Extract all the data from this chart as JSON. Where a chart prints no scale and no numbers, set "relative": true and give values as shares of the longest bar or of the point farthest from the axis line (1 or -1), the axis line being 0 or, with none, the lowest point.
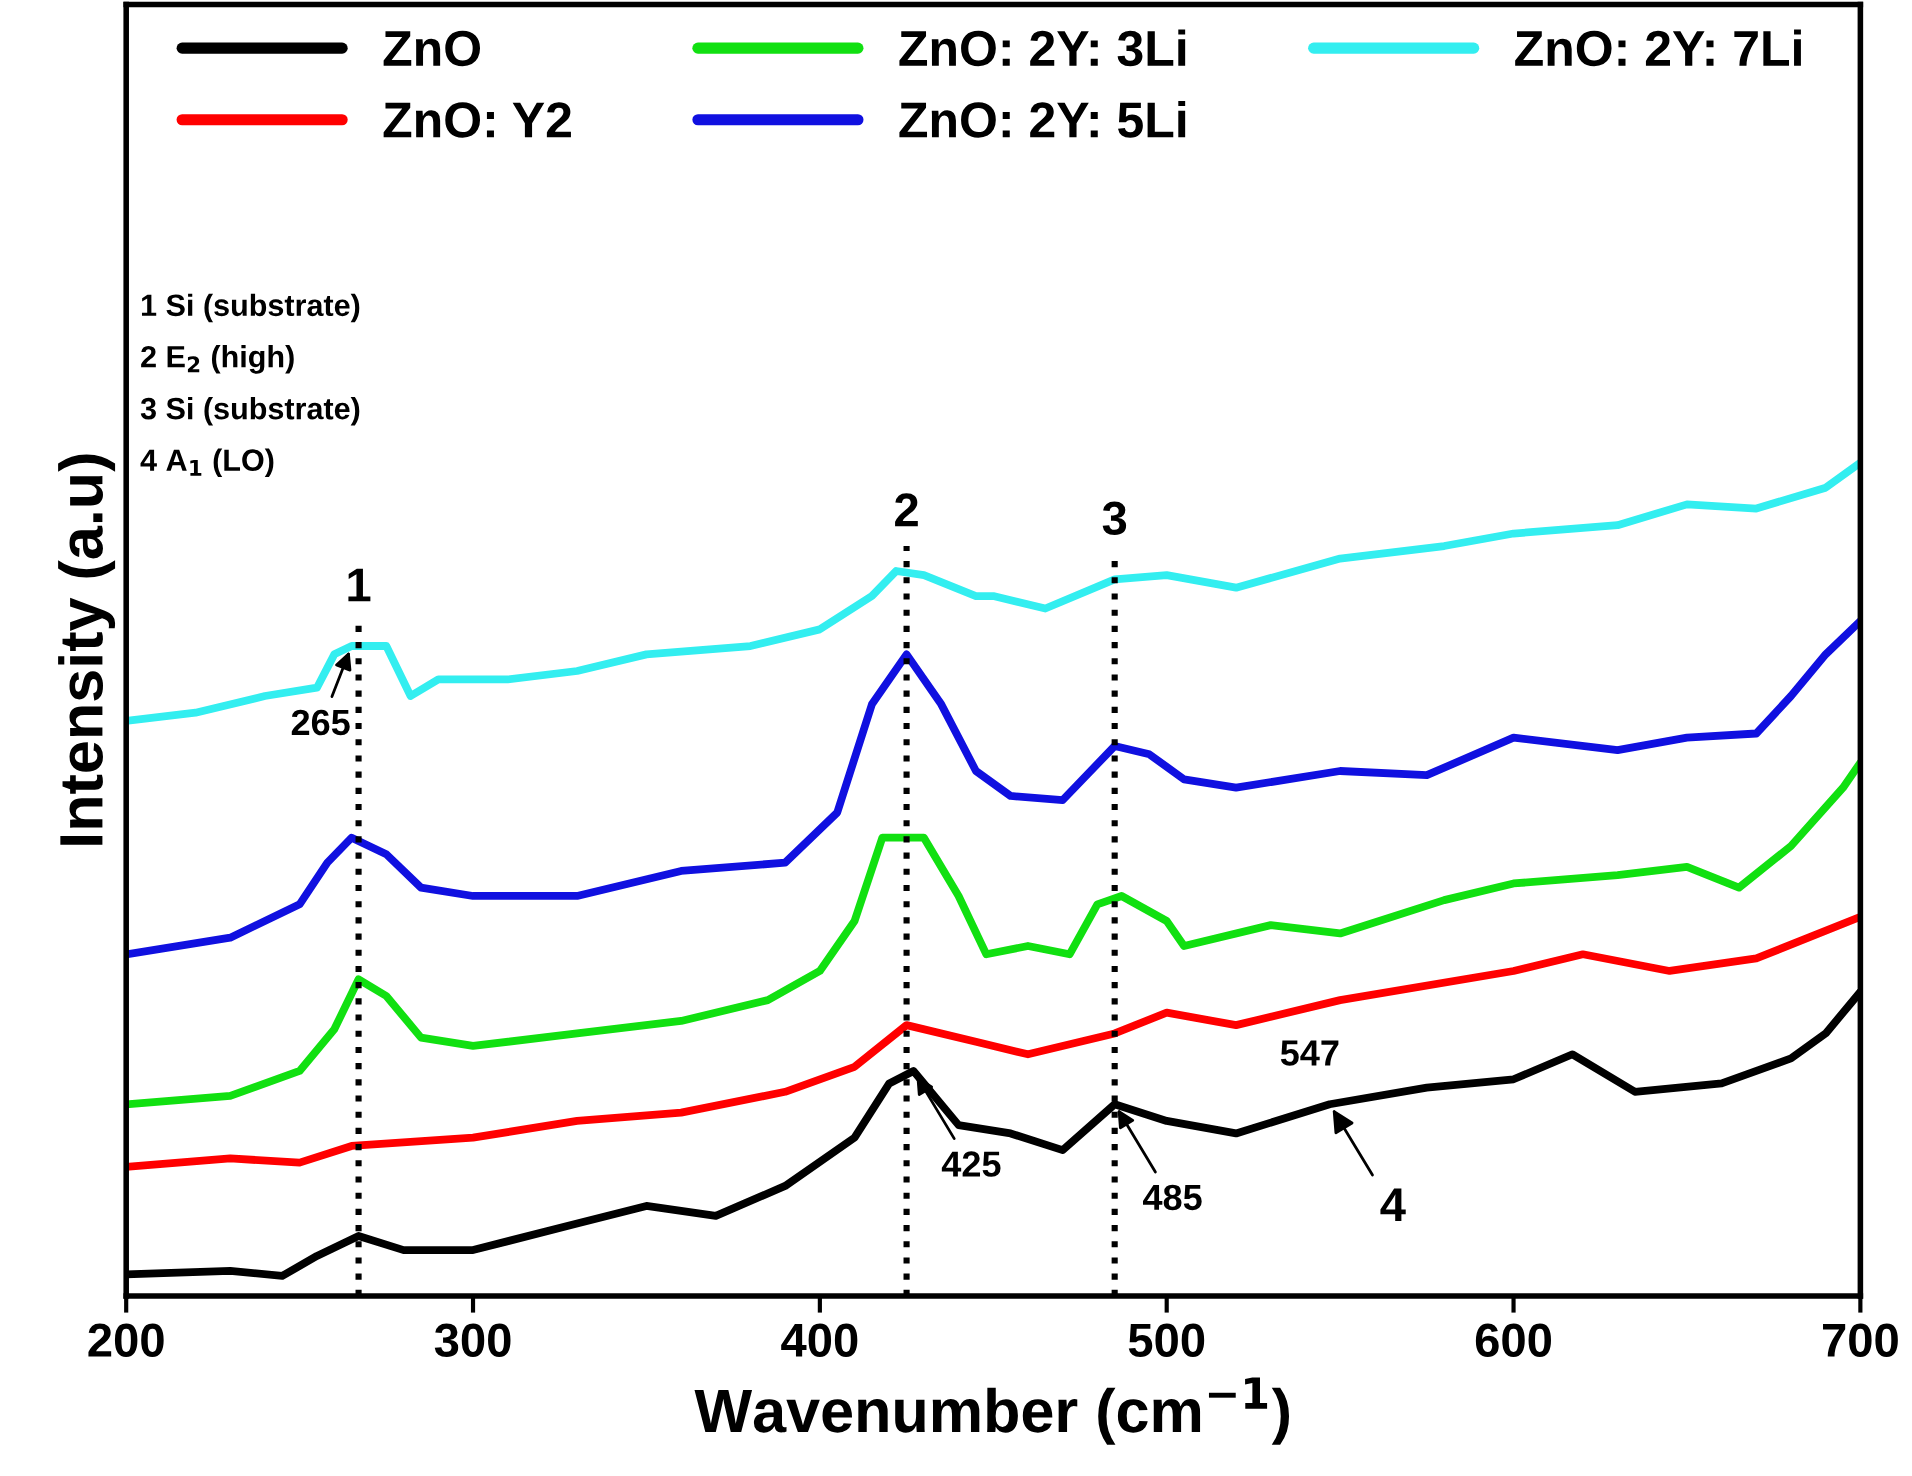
{
  "chart_data": {
    "type": "line",
    "relative": true,
    "xlabel": "Wavenumber (cm$^{−1}$)",
    "ylabel": "Intensity (a.u)",
    "xlim": [
      200,
      700
    ],
    "xticks": [
      200,
      300,
      400,
      500,
      600,
      700
    ],
    "tick_labels": "x",
    "legend": "top",
    "grid": false,
    "line_style": "solid",
    "marker": "none",
    "series": [
      {
        "name": "ZnO",
        "color": "#000000",
        "x": [
          200,
          230,
          245,
          255,
          267,
          280,
          300,
          330,
          350,
          370,
          390,
          410,
          420,
          427,
          440,
          455,
          470,
          485,
          500,
          520,
          547,
          575,
          600,
          617,
          635,
          660,
          680,
          690,
          700
        ],
        "values": [
          0.026,
          0.03,
          0.024,
          0.048,
          0.072,
          0.055,
          0.055,
          0.087,
          0.108,
          0.096,
          0.132,
          0.19,
          0.255,
          0.27,
          0.205,
          0.195,
          0.175,
          0.23,
          0.21,
          0.195,
          0.23,
          0.25,
          0.26,
          0.29,
          0.245,
          0.255,
          0.285,
          0.315,
          0.365
        ]
      },
      {
        "name": "ZnO: Y2",
        "color": "#ff0000",
        "x": [
          200,
          230,
          250,
          265,
          300,
          330,
          360,
          390,
          410,
          425,
          445,
          460,
          485,
          500,
          520,
          550,
          600,
          620,
          645,
          670,
          700
        ],
        "values": [
          0.155,
          0.165,
          0.16,
          0.18,
          0.19,
          0.21,
          0.22,
          0.245,
          0.275,
          0.325,
          0.305,
          0.29,
          0.315,
          0.34,
          0.325,
          0.355,
          0.39,
          0.41,
          0.39,
          0.405,
          0.455
        ]
      },
      {
        "name": "ZnO: 2Y: 3Li",
        "color": "#11e011",
        "x": [
          200,
          230,
          250,
          260,
          267,
          275,
          285,
          300,
          330,
          360,
          385,
          400,
          410,
          418,
          430,
          440,
          448,
          460,
          472,
          480,
          487,
          500,
          505,
          530,
          550,
          580,
          600,
          630,
          650,
          665,
          680,
          695,
          700
        ],
        "values": [
          0.23,
          0.24,
          0.27,
          0.32,
          0.38,
          0.36,
          0.31,
          0.3,
          0.315,
          0.33,
          0.355,
          0.39,
          0.45,
          0.55,
          0.55,
          0.48,
          0.41,
          0.42,
          0.41,
          0.47,
          0.48,
          0.45,
          0.42,
          0.445,
          0.435,
          0.475,
          0.495,
          0.505,
          0.515,
          0.49,
          0.54,
          0.61,
          0.64
        ]
      },
      {
        "name": "ZnO: 2Y: 5Li",
        "color": "#1010e0",
        "x": [
          200,
          230,
          250,
          258,
          265,
          275,
          285,
          300,
          330,
          360,
          390,
          405,
          415,
          425,
          435,
          445,
          455,
          470,
          485,
          495,
          505,
          520,
          550,
          575,
          600,
          630,
          650,
          670,
          680,
          690,
          700
        ],
        "values": [
          0.41,
          0.43,
          0.47,
          0.52,
          0.55,
          0.53,
          0.49,
          0.48,
          0.48,
          0.51,
          0.52,
          0.58,
          0.71,
          0.77,
          0.71,
          0.63,
          0.6,
          0.595,
          0.66,
          0.65,
          0.62,
          0.61,
          0.63,
          0.625,
          0.67,
          0.655,
          0.67,
          0.675,
          0.72,
          0.77,
          0.81
        ]
      },
      {
        "name": "ZnO: 2Y: 7Li",
        "color": "#33eef0",
        "x": [
          200,
          220,
          240,
          255,
          260,
          265,
          275,
          282,
          290,
          310,
          330,
          350,
          380,
          400,
          415,
          422,
          430,
          445,
          450,
          465,
          485,
          500,
          520,
          550,
          580,
          600,
          630,
          650,
          670,
          690,
          700
        ],
        "values": [
          0.69,
          0.7,
          0.72,
          0.73,
          0.77,
          0.78,
          0.78,
          0.72,
          0.74,
          0.74,
          0.75,
          0.77,
          0.78,
          0.8,
          0.84,
          0.87,
          0.865,
          0.84,
          0.84,
          0.825,
          0.86,
          0.865,
          0.85,
          0.885,
          0.9,
          0.915,
          0.925,
          0.95,
          0.945,
          0.97,
          1.0
        ]
      }
    ],
    "ref_lines": [
      {
        "axis": "x",
        "value": 267,
        "line_style": "dotted",
        "color": "#000000"
      },
      {
        "axis": "x",
        "value": 425,
        "line_style": "dotted",
        "color": "#000000"
      },
      {
        "axis": "x",
        "value": 485,
        "line_style": "dotted",
        "color": "#000000"
      }
    ],
    "annotations": [
      "1 Si (substrate)",
      "2 E$_{2}$ (high)",
      "3 Si (substrate)",
      "4 A$_{1}$ (LO)",
      "1",
      "2",
      "3",
      {
        "text": "265",
        "x": 265,
        "y": 0.78
      },
      {
        "text": "425",
        "x": 427,
        "y": 0.27
      },
      {
        "text": "485",
        "x": 485,
        "y": 0.23
      },
      {
        "text": "547",
        "x": 547,
        "y": 0.23
      },
      {
        "text": "4",
        "x": 547,
        "y": 0.23
      }
    ]
  }
}
